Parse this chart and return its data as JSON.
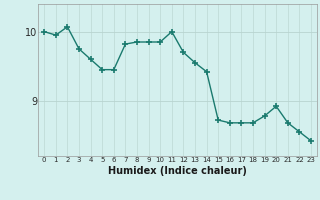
{
  "x": [
    0,
    1,
    2,
    3,
    4,
    5,
    6,
    7,
    8,
    9,
    10,
    11,
    12,
    13,
    14,
    15,
    16,
    17,
    18,
    19,
    20,
    21,
    22,
    23
  ],
  "y": [
    10.0,
    9.95,
    10.07,
    9.75,
    9.6,
    9.45,
    9.45,
    9.82,
    9.85,
    9.85,
    9.85,
    10.0,
    9.7,
    9.55,
    9.42,
    8.72,
    8.68,
    8.68,
    8.68,
    8.78,
    8.92,
    8.68,
    8.55,
    8.42
  ],
  "xlabel": "Humidex (Indice chaleur)",
  "background_color": "#d4f0ee",
  "line_color": "#1a7a6e",
  "marker_color": "#1a7a6e",
  "grid_color_v": "#c0dcd8",
  "grid_color_h": "#b8d4d0",
  "yticks": [
    9,
    10
  ],
  "ylim": [
    8.2,
    10.4
  ],
  "xlim": [
    -0.5,
    23.5
  ],
  "xtick_labels": [
    "0",
    "1",
    "2",
    "3",
    "4",
    "5",
    "6",
    "7",
    "8",
    "9",
    "10",
    "11",
    "12",
    "13",
    "14",
    "15",
    "16",
    "17",
    "18",
    "19",
    "20",
    "21",
    "22",
    "23"
  ]
}
